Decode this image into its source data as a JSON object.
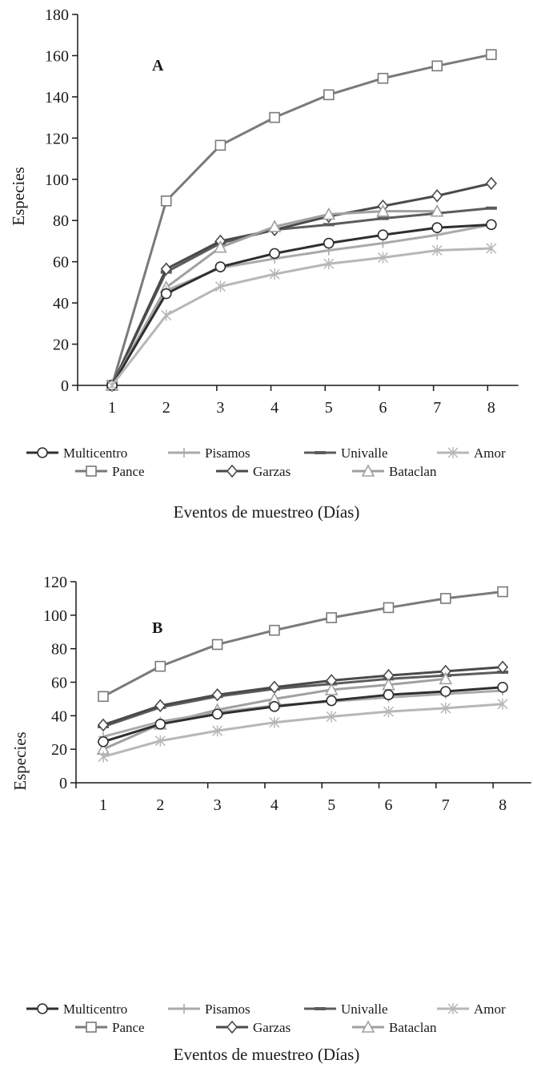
{
  "chart_data": [
    {
      "type": "line",
      "panel_label": "A",
      "xlabel": "Eventos de muestreo (Días)",
      "ylabel": "Especies",
      "x": [
        1,
        2,
        3,
        4,
        5,
        6,
        7,
        8
      ],
      "xticks": [
        "1",
        "2",
        "3",
        "4",
        "5",
        "6",
        "7",
        "8"
      ],
      "ylim": [
        0,
        180
      ],
      "yticks": [
        "0",
        "20",
        "40",
        "60",
        "80",
        "100",
        "120",
        "140",
        "160",
        "180"
      ],
      "grid": false,
      "legend_position": "bottom",
      "series": [
        {
          "name": "Multicentro",
          "marker": "circle",
          "color": "#2f2f2f",
          "values": [
            0,
            44.5,
            57.5,
            64,
            69,
            73,
            76.5,
            78
          ]
        },
        {
          "name": "Pisamos",
          "marker": "plus",
          "color": "#aaaaaa",
          "values": [
            0,
            46,
            57,
            61.5,
            65.5,
            69,
            73,
            78
          ]
        },
        {
          "name": "Univalle",
          "marker": "dash",
          "color": "#5c5c5c",
          "values": [
            0,
            55,
            69,
            75.5,
            78,
            81,
            83.5,
            86
          ]
        },
        {
          "name": "Amor",
          "marker": "asterisk",
          "color": "#b7b7b7",
          "values": [
            0,
            34,
            48,
            54,
            59,
            62,
            65.5,
            66.5
          ]
        },
        {
          "name": "Pance",
          "marker": "square",
          "color": "#7a7a7a",
          "values": [
            0,
            89.5,
            116.5,
            130,
            141,
            149,
            155,
            160.5
          ]
        },
        {
          "name": "Garzas",
          "marker": "diamond",
          "color": "#4a4a4a",
          "values": [
            0,
            56.5,
            70,
            75.5,
            82,
            87,
            92,
            98
          ]
        },
        {
          "name": "Bataclan",
          "marker": "triangle",
          "color": "#a0a0a0",
          "values": [
            0,
            47.5,
            67,
            77,
            83,
            84.5,
            84.5,
            null
          ]
        }
      ]
    },
    {
      "type": "line",
      "panel_label": "B",
      "xlabel": "Eventos de muestreo (Días)",
      "ylabel": "Especies",
      "x": [
        1,
        2,
        3,
        4,
        5,
        6,
        7,
        8
      ],
      "xticks": [
        "1",
        "2",
        "3",
        "4",
        "5",
        "6",
        "7",
        "8"
      ],
      "ylim": [
        0,
        120
      ],
      "yticks": [
        "0",
        "20",
        "40",
        "60",
        "80",
        "100",
        "120"
      ],
      "grid": false,
      "legend_position": "bottom",
      "series": [
        {
          "name": "Multicentro",
          "marker": "circle",
          "color": "#2f2f2f",
          "values": [
            24.5,
            35,
            41,
            45.5,
            49,
            52.5,
            54.5,
            57
          ]
        },
        {
          "name": "Pisamos",
          "marker": "plus",
          "color": "#aaaaaa",
          "values": [
            27.5,
            36.5,
            42,
            46,
            48.5,
            51,
            53,
            55
          ]
        },
        {
          "name": "Univalle",
          "marker": "dash",
          "color": "#5c5c5c",
          "values": [
            33.5,
            45,
            51.5,
            56,
            59,
            62,
            64,
            66
          ]
        },
        {
          "name": "Amor",
          "marker": "asterisk",
          "color": "#b7b7b7",
          "values": [
            15.5,
            25,
            31,
            36,
            39.5,
            42.5,
            44.5,
            47
          ]
        },
        {
          "name": "Pance",
          "marker": "square",
          "color": "#7a7a7a",
          "values": [
            51.5,
            69.5,
            82.5,
            91,
            98.5,
            104.5,
            110,
            114
          ]
        },
        {
          "name": "Garzas",
          "marker": "diamond",
          "color": "#4a4a4a",
          "values": [
            34.5,
            46,
            52.5,
            57,
            61,
            64,
            66.5,
            69
          ]
        },
        {
          "name": "Bataclan",
          "marker": "triangle",
          "color": "#a0a0a0",
          "values": [
            20,
            35,
            43.5,
            50,
            55.5,
            58.5,
            62,
            null
          ]
        }
      ]
    }
  ]
}
